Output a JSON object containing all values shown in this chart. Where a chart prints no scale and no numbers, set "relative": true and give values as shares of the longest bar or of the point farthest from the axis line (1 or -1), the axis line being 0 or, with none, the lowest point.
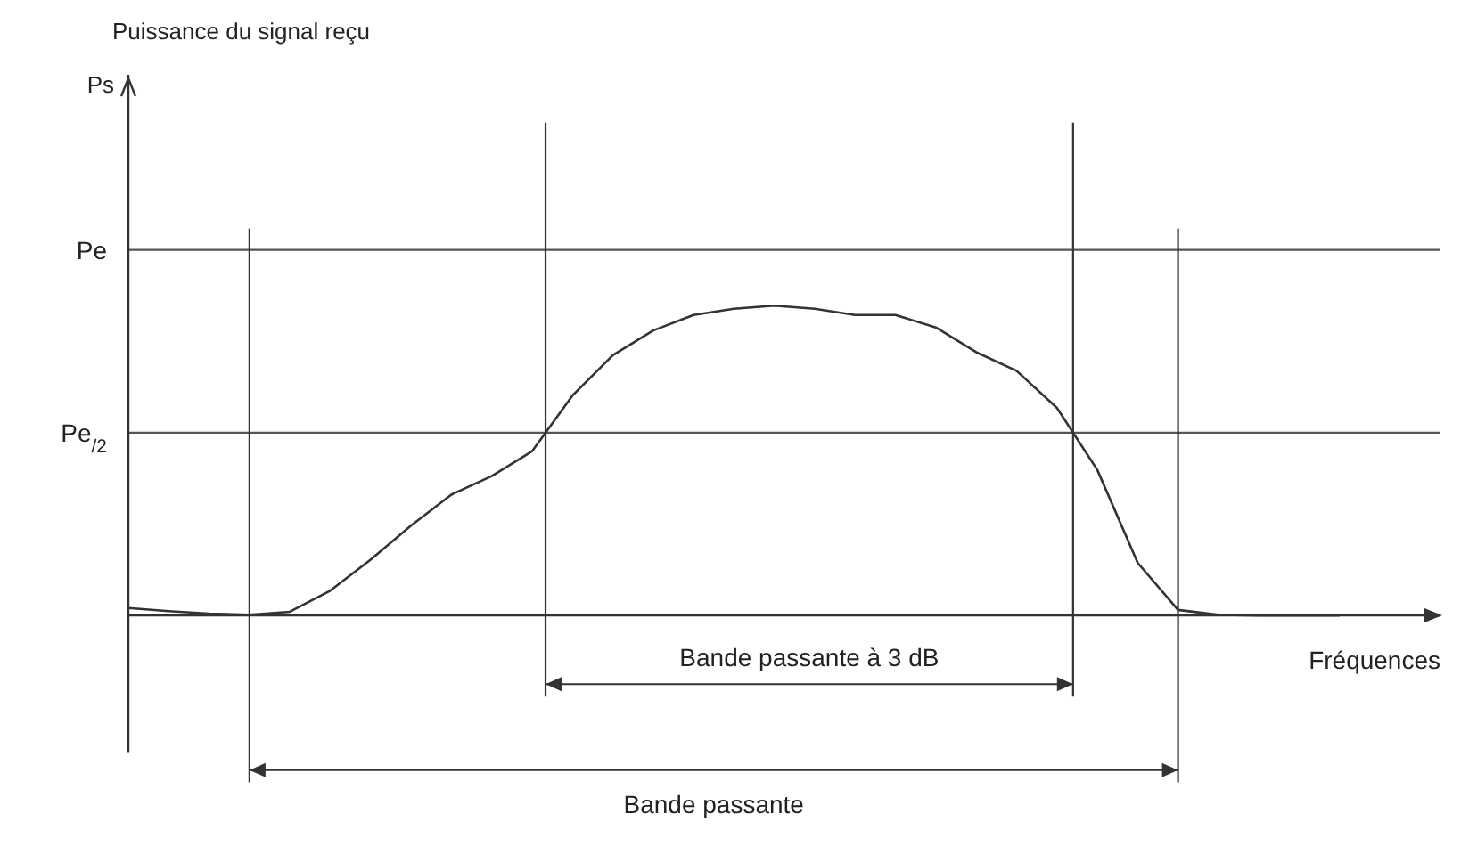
{
  "chart_data": {
    "type": "line",
    "title": "Puissance du signal reçu",
    "xlabel": "Fréquences",
    "relative": true,
    "annotations": [
      "Ps",
      "Bande passante à 3 dB",
      "Bande passante"
    ],
    "categories": [
      null,
      null,
      null,
      null,
      null,
      null,
      null,
      null,
      null,
      null,
      null,
      null,
      null,
      null,
      null,
      null,
      null,
      null,
      null,
      null,
      null,
      null,
      null,
      null,
      null,
      null,
      null,
      null,
      null,
      null,
      null
    ],
    "series": [
      {
        "color": "#333333",
        "values": [
          0.024,
          0.014,
          0.006,
          0.002,
          0.012,
          0.08,
          0.18,
          0.29,
          0.39,
          0.45,
          0.53,
          0.71,
          0.84,
          0.92,
          0.97,
          0.99,
          1,
          0.99,
          0.97,
          0.97,
          0.93,
          0.85,
          0.79,
          0.67,
          0.47,
          0.17,
          0.018,
          0.002,
          0,
          0,
          0
        ]
      }
    ],
    "marker": "none",
    "line_style": "solid",
    "ref_lines": [
      {
        "axis": "y",
        "value": 1.18,
        "label": "Pe",
        "color": "#555555"
      },
      {
        "axis": "y",
        "value": 0.59,
        "label": "Pe$_{/2}$",
        "color": "#555555"
      }
    ]
  }
}
